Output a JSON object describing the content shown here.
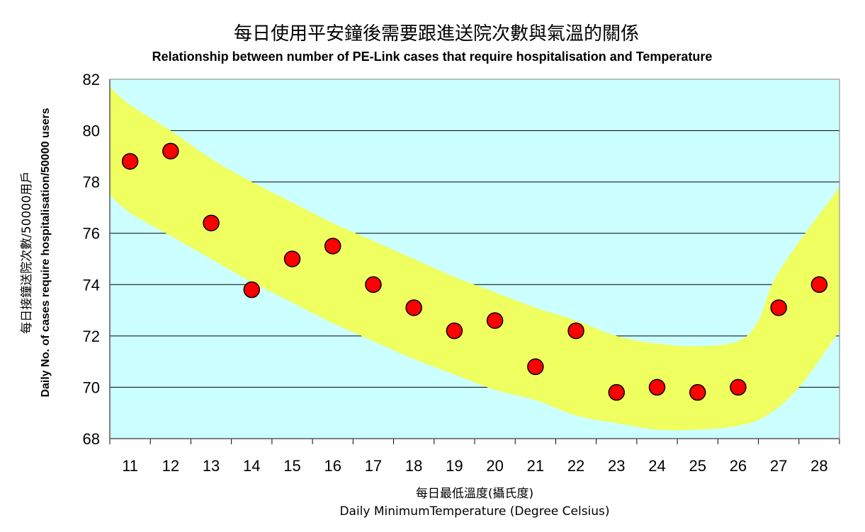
{
  "chart_data": {
    "type": "scatter",
    "title": "每日使用平安鐘後需要跟進送院次數與氣溫的關係",
    "subtitle": "Relationship between number of PE-Link cases that require hospitalisation and Temperature",
    "xlabel_zh": "每日最低溫度(攝氏度)",
    "xlabel_en": "Daily MinimumTemperature (Degree Celsius)",
    "ylabel_zh": "每日接鐘送院次數/50000用戶",
    "ylabel_en": "Daily No. of cases require hospitalisation/50000 users",
    "x_categories": [
      "11",
      "12",
      "13",
      "14",
      "15",
      "16",
      "17",
      "18",
      "19",
      "20",
      "21",
      "22",
      "23",
      "24",
      "25",
      "26",
      "27",
      "28"
    ],
    "y_ticks": [
      "68",
      "70",
      "72",
      "74",
      "76",
      "78",
      "80",
      "82"
    ],
    "ylim": [
      68,
      82
    ],
    "grid": "horizontal",
    "plot_background": "#ccffff",
    "band_color": "#f0ff60",
    "marker_color": "#ff0000",
    "points": [
      {
        "x": 11,
        "y": 78.8
      },
      {
        "x": 12,
        "y": 79.2
      },
      {
        "x": 13,
        "y": 76.4
      },
      {
        "x": 14,
        "y": 73.8
      },
      {
        "x": 15,
        "y": 75.0
      },
      {
        "x": 16,
        "y": 75.5
      },
      {
        "x": 17,
        "y": 74.0
      },
      {
        "x": 18,
        "y": 73.1
      },
      {
        "x": 19,
        "y": 72.2
      },
      {
        "x": 20,
        "y": 72.6
      },
      {
        "x": 21,
        "y": 70.8
      },
      {
        "x": 22,
        "y": 72.2
      },
      {
        "x": 23,
        "y": 69.8
      },
      {
        "x": 24,
        "y": 70.0
      },
      {
        "x": 25,
        "y": 69.8
      },
      {
        "x": 26,
        "y": 70.0
      },
      {
        "x": 27,
        "y": 73.1
      },
      {
        "x": 28,
        "y": 74.0
      }
    ],
    "band": {
      "upper": [
        {
          "x": 10.5,
          "y": 81.7
        },
        {
          "x": 11,
          "y": 81.0
        },
        {
          "x": 12,
          "y": 80.0
        },
        {
          "x": 13,
          "y": 78.9
        },
        {
          "x": 14,
          "y": 78.0
        },
        {
          "x": 15,
          "y": 77.2
        },
        {
          "x": 16,
          "y": 76.4
        },
        {
          "x": 17,
          "y": 75.7
        },
        {
          "x": 18,
          "y": 75.0
        },
        {
          "x": 19,
          "y": 74.3
        },
        {
          "x": 20,
          "y": 73.7
        },
        {
          "x": 21,
          "y": 73.1
        },
        {
          "x": 22,
          "y": 72.6
        },
        {
          "x": 23,
          "y": 72.0
        },
        {
          "x": 24,
          "y": 71.7
        },
        {
          "x": 25,
          "y": 71.6
        },
        {
          "x": 26,
          "y": 71.8
        },
        {
          "x": 26.5,
          "y": 72.6
        },
        {
          "x": 27,
          "y": 74.5
        },
        {
          "x": 28.5,
          "y": 77.8
        }
      ],
      "lower": [
        {
          "x": 10.5,
          "y": 77.5
        },
        {
          "x": 11,
          "y": 76.8
        },
        {
          "x": 12,
          "y": 75.9
        },
        {
          "x": 13,
          "y": 75.0
        },
        {
          "x": 14,
          "y": 74.1
        },
        {
          "x": 15,
          "y": 73.3
        },
        {
          "x": 16,
          "y": 72.5
        },
        {
          "x": 17,
          "y": 71.8
        },
        {
          "x": 18,
          "y": 71.1
        },
        {
          "x": 19,
          "y": 70.5
        },
        {
          "x": 20,
          "y": 69.9
        },
        {
          "x": 21,
          "y": 69.5
        },
        {
          "x": 22,
          "y": 68.9
        },
        {
          "x": 23,
          "y": 68.6
        },
        {
          "x": 24,
          "y": 68.35
        },
        {
          "x": 25,
          "y": 68.35
        },
        {
          "x": 26,
          "y": 68.5
        },
        {
          "x": 26.7,
          "y": 68.9
        },
        {
          "x": 27.5,
          "y": 70.0
        },
        {
          "x": 28.5,
          "y": 72.2
        }
      ]
    }
  }
}
